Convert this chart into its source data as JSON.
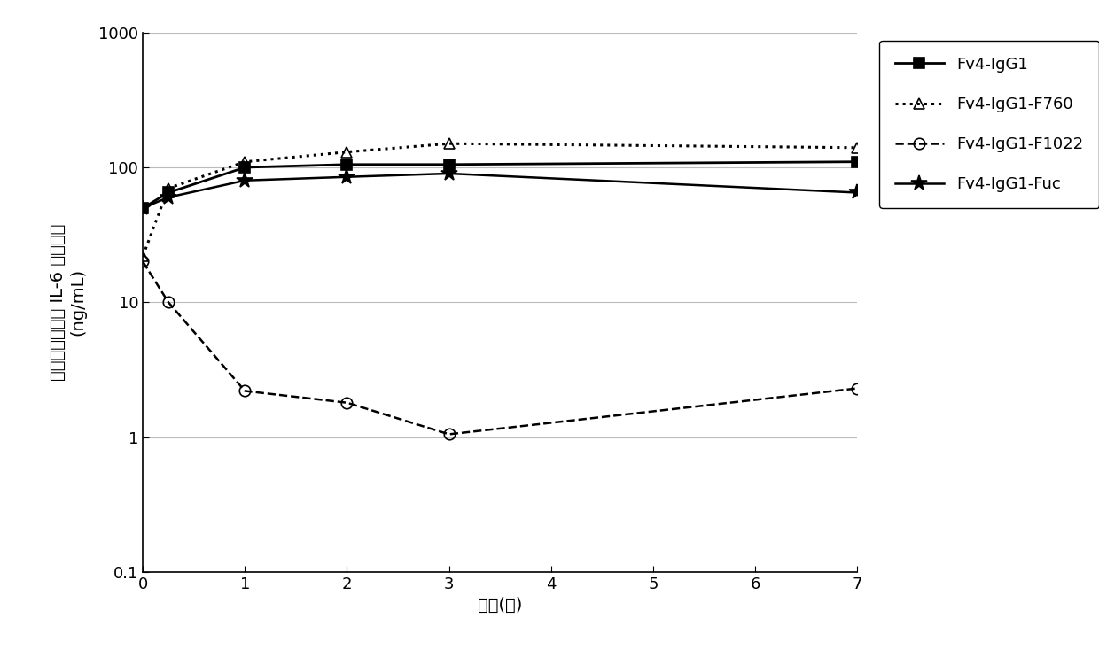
{
  "title": "",
  "xlabel": "时间(天)",
  "ylabel_line1": "血浆中可溶型人 IL-6 受体浓度",
  "ylabel_line2": "(ng/mL)",
  "xlim": [
    0,
    7
  ],
  "ylim_log": [
    0.1,
    1000
  ],
  "xticks": [
    0,
    1,
    2,
    3,
    4,
    5,
    6,
    7
  ],
  "series": [
    {
      "label": "Fv4-IgG1",
      "x": [
        0,
        0.25,
        1,
        2,
        3,
        7
      ],
      "y": [
        50,
        65,
        100,
        105,
        105,
        110
      ],
      "color": "#000000",
      "linestyle": "-",
      "marker": "s",
      "markersize": 8,
      "linewidth": 2.0,
      "fillstyle": "full"
    },
    {
      "label": "Fv4-IgG1-F760",
      "x": [
        0,
        0.25,
        1,
        2,
        3,
        7
      ],
      "y": [
        22,
        70,
        110,
        130,
        150,
        140
      ],
      "color": "#000000",
      "linestyle": ":",
      "marker": "^",
      "markersize": 9,
      "linewidth": 2.2,
      "fillstyle": "none"
    },
    {
      "label": "Fv4-IgG1-F1022",
      "x": [
        0,
        0.25,
        1,
        2,
        3,
        7
      ],
      "y": [
        20,
        10,
        2.2,
        1.8,
        1.05,
        2.3
      ],
      "color": "#000000",
      "linestyle": "--",
      "marker": "o",
      "markersize": 9,
      "linewidth": 1.8,
      "fillstyle": "none"
    },
    {
      "label": "Fv4-IgG1-Fuc",
      "x": [
        0,
        0.25,
        1,
        2,
        3,
        7
      ],
      "y": [
        50,
        60,
        80,
        85,
        90,
        65
      ],
      "color": "#000000",
      "linestyle": "-",
      "marker": "*",
      "markersize": 13,
      "linewidth": 1.8,
      "fillstyle": "full"
    }
  ],
  "background_color": "#ffffff",
  "grid_color": "#bbbbbb",
  "legend_fontsize": 13,
  "axis_fontsize": 14,
  "tick_fontsize": 13,
  "ytick_labels": [
    "0.1",
    "1",
    "10",
    "100",
    "1000"
  ]
}
